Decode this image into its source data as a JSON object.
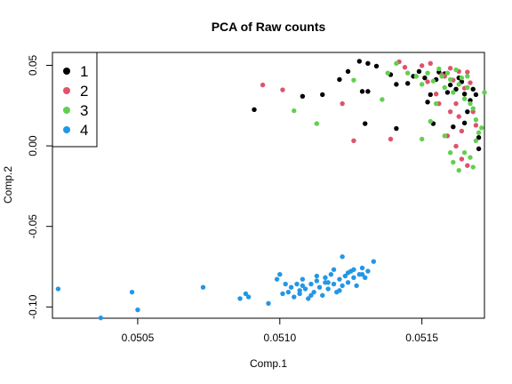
{
  "chart_data": {
    "type": "scatter",
    "title": "PCA of Raw counts",
    "xlabel": "Comp.1",
    "ylabel": "Comp.2",
    "xlim": [
      0.0502,
      0.05172
    ],
    "ylim": [
      -0.107,
      0.058
    ],
    "xticks": [
      {
        "value": 0.0505,
        "label": "0.0505"
      },
      {
        "value": 0.051,
        "label": "0.0510"
      },
      {
        "value": 0.0515,
        "label": "0.0515"
      }
    ],
    "yticks": [
      {
        "value": -0.1,
        "label": "-0.10"
      },
      {
        "value": -0.05,
        "label": "-0.05"
      },
      {
        "value": 0.0,
        "label": "0.00"
      },
      {
        "value": 0.05,
        "label": "0.05"
      }
    ],
    "grid": false,
    "legend_position": "top-left",
    "series": [
      {
        "name": "1",
        "color": "#000000",
        "points": [
          [
            0.05091,
            0.0225
          ],
          [
            0.05108,
            0.0308
          ],
          [
            0.05115,
            0.0318
          ],
          [
            0.05121,
            0.0412
          ],
          [
            0.05124,
            0.0462
          ],
          [
            0.05128,
            0.0525
          ],
          [
            0.05129,
            0.0338
          ],
          [
            0.05131,
            0.0338
          ],
          [
            0.05131,
            0.0512
          ],
          [
            0.05134,
            0.0495
          ],
          [
            0.0513,
            0.0138
          ],
          [
            0.05139,
            0.0442
          ],
          [
            0.05141,
            0.0382
          ],
          [
            0.05145,
            0.0388
          ],
          [
            0.05147,
            0.0432
          ],
          [
            0.05141,
            0.0108
          ],
          [
            0.05149,
            0.0462
          ],
          [
            0.05151,
            0.0422
          ],
          [
            0.05153,
            0.0318
          ],
          [
            0.05155,
            0.0412
          ],
          [
            0.05156,
            0.0458
          ],
          [
            0.05158,
            0.0448
          ],
          [
            0.05159,
            0.0332
          ],
          [
            0.0516,
            0.0378
          ],
          [
            0.05162,
            0.0352
          ],
          [
            0.05164,
            0.0398
          ],
          [
            0.05165,
            0.0322
          ],
          [
            0.05166,
            0.0212
          ],
          [
            0.05167,
            0.0282
          ],
          [
            0.05168,
            0.0352
          ],
          [
            0.05169,
            0.0318
          ],
          [
            0.05161,
            0.0118
          ],
          [
            0.05165,
            0.0142
          ],
          [
            0.0517,
            0.0052
          ],
          [
            0.0517,
            -0.0018
          ],
          [
            0.05154,
            0.0138
          ],
          [
            0.05152,
            0.0272
          ],
          [
            0.05163,
            0.0422
          ]
        ]
      },
      {
        "name": "2",
        "color": "#DF536B",
        "points": [
          [
            0.05094,
            0.0378
          ],
          [
            0.05101,
            0.0348
          ],
          [
            0.05122,
            0.0262
          ],
          [
            0.05126,
            0.0032
          ],
          [
            0.05139,
            0.0042
          ],
          [
            0.05142,
            0.0522
          ],
          [
            0.05144,
            0.0488
          ],
          [
            0.0515,
            0.0498
          ],
          [
            0.05153,
            0.0512
          ],
          [
            0.05155,
            0.0322
          ],
          [
            0.05156,
            0.0262
          ],
          [
            0.05158,
            0.0432
          ],
          [
            0.0516,
            0.0482
          ],
          [
            0.05161,
            0.0408
          ],
          [
            0.05162,
            0.0262
          ],
          [
            0.05163,
            0.0182
          ],
          [
            0.05164,
            0.0092
          ],
          [
            0.05165,
            0.0358
          ],
          [
            0.05166,
            0.0458
          ],
          [
            0.05167,
            0.0392
          ],
          [
            0.05168,
            0.0212
          ],
          [
            0.05169,
            0.0128
          ],
          [
            0.05159,
            0.0062
          ],
          [
            0.05162,
            -0.0002
          ],
          [
            0.05164,
            -0.0082
          ],
          [
            0.05166,
            -0.0122
          ],
          [
            0.05157,
            0.0442
          ],
          [
            0.05152,
            0.0398
          ],
          [
            0.05163,
            0.0462
          ],
          [
            0.0516,
            0.0212
          ]
        ]
      },
      {
        "name": "3",
        "color": "#61D04F",
        "points": [
          [
            0.05105,
            0.0218
          ],
          [
            0.05113,
            0.0138
          ],
          [
            0.05126,
            0.0408
          ],
          [
            0.05136,
            0.0288
          ],
          [
            0.05138,
            0.0452
          ],
          [
            0.05141,
            0.0512
          ],
          [
            0.05145,
            0.0452
          ],
          [
            0.05148,
            0.0432
          ],
          [
            0.0515,
            0.0382
          ],
          [
            0.05152,
            0.0452
          ],
          [
            0.05154,
            0.0402
          ],
          [
            0.05155,
            0.0262
          ],
          [
            0.05156,
            0.0478
          ],
          [
            0.05157,
            0.0432
          ],
          [
            0.05158,
            0.0362
          ],
          [
            0.05159,
            0.0452
          ],
          [
            0.0516,
            0.0412
          ],
          [
            0.05161,
            0.0332
          ],
          [
            0.05162,
            0.0472
          ],
          [
            0.05163,
            0.0382
          ],
          [
            0.05164,
            0.0422
          ],
          [
            0.05165,
            0.0292
          ],
          [
            0.05166,
            0.0362
          ],
          [
            0.05167,
            0.0262
          ],
          [
            0.05168,
            0.0232
          ],
          [
            0.05169,
            0.0162
          ],
          [
            0.0517,
            0.0082
          ],
          [
            0.05172,
            0.0332
          ],
          [
            0.0515,
            0.0042
          ],
          [
            0.05158,
            0.0062
          ],
          [
            0.0516,
            -0.0042
          ],
          [
            0.05161,
            -0.0102
          ],
          [
            0.05163,
            -0.0152
          ],
          [
            0.05165,
            -0.0042
          ],
          [
            0.05167,
            -0.0072
          ],
          [
            0.05168,
            -0.0132
          ],
          [
            0.05169,
            0.0032
          ],
          [
            0.05171,
            0.0112
          ],
          [
            0.05153,
            0.0152
          ],
          [
            0.05166,
            0.0432
          ]
        ]
      },
      {
        "name": "4",
        "color": "#2297E6",
        "points": [
          [
            0.05022,
            -0.0888
          ],
          [
            0.05037,
            -0.1068
          ],
          [
            0.05048,
            -0.0908
          ],
          [
            0.0505,
            -0.1018
          ],
          [
            0.05073,
            -0.0878
          ],
          [
            0.05086,
            -0.0948
          ],
          [
            0.05088,
            -0.0918
          ],
          [
            0.05089,
            -0.0938
          ],
          [
            0.05096,
            -0.0978
          ],
          [
            0.05099,
            -0.0828
          ],
          [
            0.051,
            -0.0798
          ],
          [
            0.05103,
            -0.0908
          ],
          [
            0.05104,
            -0.0878
          ],
          [
            0.05105,
            -0.0938
          ],
          [
            0.05106,
            -0.0858
          ],
          [
            0.05107,
            -0.0918
          ],
          [
            0.05108,
            -0.0828
          ],
          [
            0.05109,
            -0.0888
          ],
          [
            0.0511,
            -0.0948
          ],
          [
            0.05111,
            -0.0858
          ],
          [
            0.05112,
            -0.0908
          ],
          [
            0.05113,
            -0.0808
          ],
          [
            0.05114,
            -0.0878
          ],
          [
            0.05115,
            -0.0928
          ],
          [
            0.05116,
            -0.0848
          ],
          [
            0.05117,
            -0.0888
          ],
          [
            0.05118,
            -0.0798
          ],
          [
            0.05119,
            -0.0858
          ],
          [
            0.0512,
            -0.0908
          ],
          [
            0.05121,
            -0.0828
          ],
          [
            0.05122,
            -0.0868
          ],
          [
            0.05123,
            -0.0808
          ],
          [
            0.05124,
            -0.0848
          ],
          [
            0.05125,
            -0.0778
          ],
          [
            0.05126,
            -0.0818
          ],
          [
            0.05127,
            -0.0868
          ],
          [
            0.05128,
            -0.0798
          ],
          [
            0.05129,
            -0.0758
          ],
          [
            0.0513,
            -0.0818
          ],
          [
            0.05131,
            -0.0778
          ],
          [
            0.05101,
            -0.0918
          ],
          [
            0.05111,
            -0.0928
          ],
          [
            0.05121,
            -0.0898
          ],
          [
            0.05116,
            -0.0818
          ],
          [
            0.05124,
            -0.0788
          ],
          [
            0.05108,
            -0.0868
          ],
          [
            0.05113,
            -0.0838
          ],
          [
            0.05119,
            -0.0768
          ],
          [
            0.05133,
            -0.0718
          ],
          [
            0.05122,
            -0.0688
          ],
          [
            0.05126,
            -0.0768
          ],
          [
            0.05129,
            -0.0798
          ],
          [
            0.05102,
            -0.0858
          ],
          [
            0.05107,
            -0.0898
          ],
          [
            0.05117,
            -0.0848
          ]
        ]
      }
    ]
  }
}
